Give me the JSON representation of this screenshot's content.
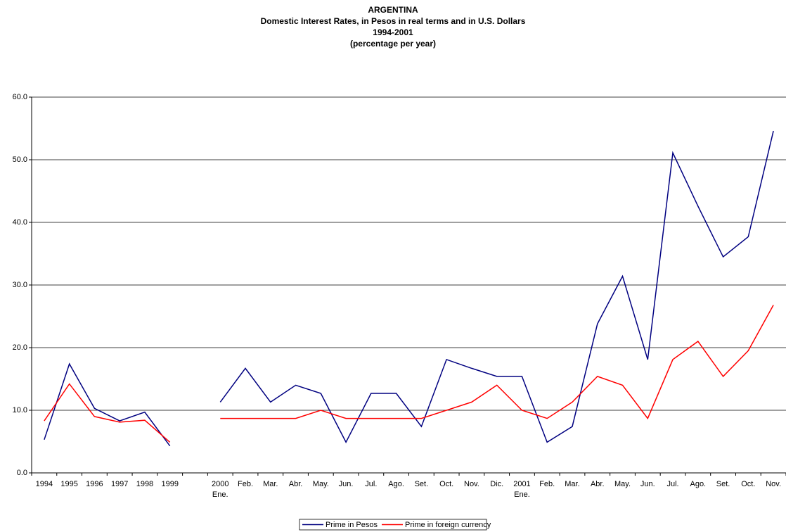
{
  "chart_data": {
    "type": "line",
    "title": "ARGENTINA",
    "subtitle": "Domestic Interest Rates, in Pesos in real terms and in U.S. Dollars",
    "period": "1994-2001",
    "units": "(percentage per year)",
    "categories": [
      "1994",
      "1995",
      "1996",
      "1997",
      "1998",
      "1999",
      null,
      "2000\nEne.",
      "Feb.",
      "Mar.",
      "Abr.",
      "May.",
      "Jun.",
      "Jul.",
      "Ago.",
      "Set.",
      "Oct.",
      "Nov.",
      "Dic.",
      "2001\nEne.",
      "Feb.",
      "Mar.",
      "Abr.",
      "May.",
      "Jun.",
      "Jul.",
      "Ago.",
      "Set.",
      "Oct.",
      "Nov."
    ],
    "series": [
      {
        "name": "Prime in Pesos",
        "color": "#000080",
        "values": [
          5.3,
          17.4,
          10.3,
          8.3,
          9.7,
          4.3,
          null,
          11.3,
          16.7,
          11.3,
          14.0,
          12.7,
          4.9,
          12.7,
          12.7,
          7.4,
          18.1,
          16.7,
          15.4,
          15.4,
          4.9,
          7.4,
          23.8,
          31.4,
          18.1,
          51.1,
          42.6,
          34.5,
          37.7,
          54.6
        ]
      },
      {
        "name": "Prime in foreign currency",
        "color": "#ff0000",
        "values": [
          8.3,
          14.2,
          9.0,
          8.1,
          8.4,
          4.9,
          null,
          8.7,
          8.7,
          8.7,
          8.7,
          10.0,
          8.7,
          8.7,
          8.7,
          8.7,
          10.0,
          11.3,
          14.0,
          10.0,
          8.7,
          11.3,
          15.4,
          14.0,
          8.7,
          18.1,
          21.0,
          15.4,
          19.5,
          26.8
        ]
      }
    ],
    "ylim": [
      0,
      60
    ],
    "yticks": [
      {
        "value": 0,
        "label": "0.0"
      },
      {
        "value": 10,
        "label": "10.0"
      },
      {
        "value": 20,
        "label": "20.0"
      },
      {
        "value": 30,
        "label": "30.0"
      },
      {
        "value": 40,
        "label": "40.0"
      },
      {
        "value": 50,
        "label": "50.0"
      },
      {
        "value": 60,
        "label": "60.0"
      }
    ],
    "grid": true,
    "legend": "bottom"
  }
}
